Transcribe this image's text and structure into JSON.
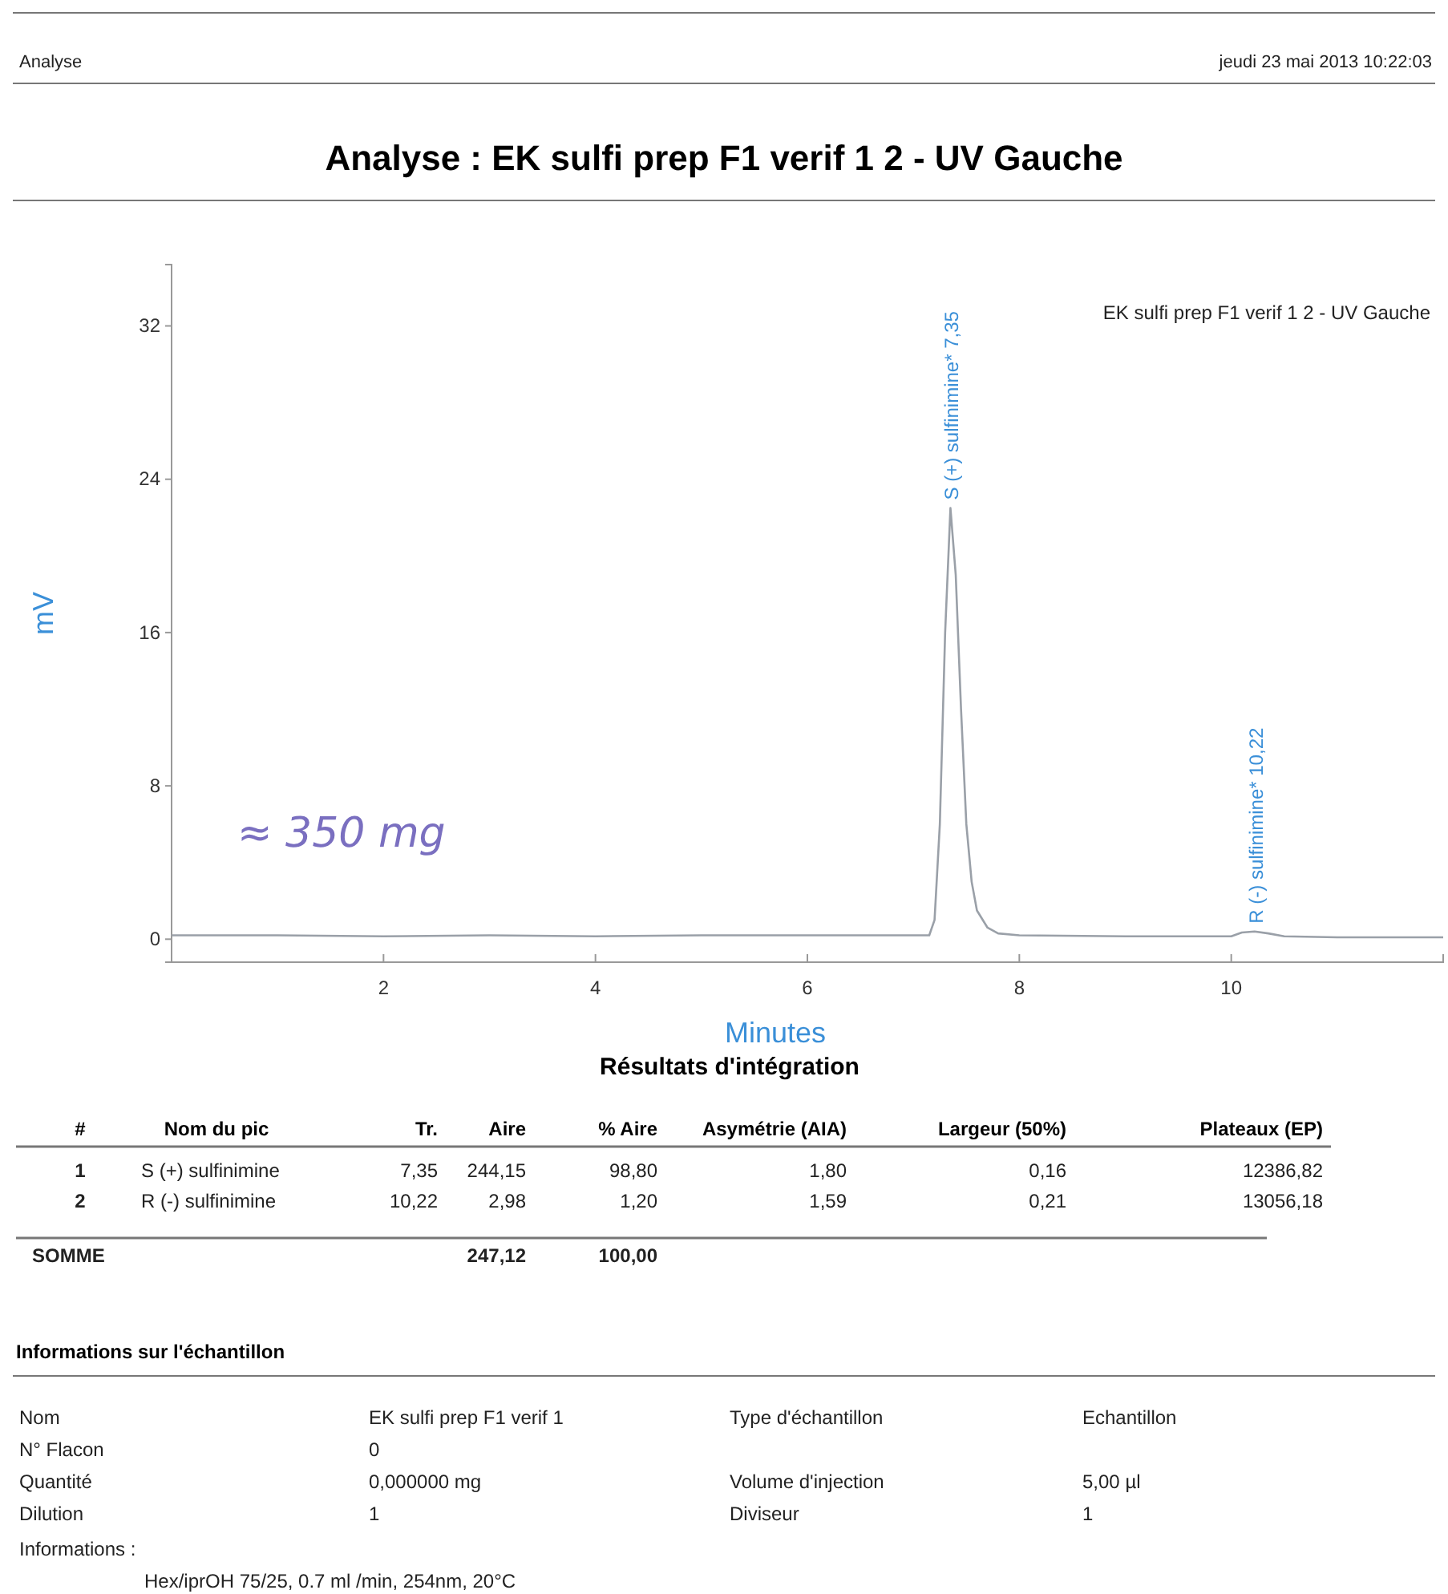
{
  "chart_data": [
    {
      "type": "line",
      "title": "Analyse : EK sulfi prep F1 verif 1 2 - UV Gauche",
      "xlabel": "Minutes",
      "ylabel": "mV",
      "x": [
        0,
        1,
        2,
        3,
        4,
        5,
        6,
        7,
        7.15,
        7.2,
        7.25,
        7.3,
        7.35,
        7.4,
        7.45,
        7.5,
        7.55,
        7.6,
        7.7,
        7.8,
        8,
        9,
        10,
        10.1,
        10.22,
        10.35,
        10.5,
        11,
        12
      ],
      "series": [
        {
          "name": "EK sulfi prep F1 verif 1 2 - UV Gauche",
          "color": "#9aa0a8",
          "values": [
            0.2,
            0.2,
            0.15,
            0.2,
            0.15,
            0.2,
            0.2,
            0.2,
            0.2,
            1,
            6,
            16,
            22.5,
            19,
            12,
            6,
            3,
            1.5,
            0.6,
            0.3,
            0.2,
            0.15,
            0.15,
            0.35,
            0.4,
            0.3,
            0.15,
            0.1,
            0.1
          ]
        }
      ],
      "xlim": [
        0,
        12
      ],
      "ylim": [
        -1.2,
        35.2
      ],
      "xticks": [
        2,
        4,
        6,
        8,
        10
      ],
      "yticks": [
        0,
        8,
        16,
        24,
        32
      ],
      "grid": false,
      "legend": "top right",
      "marker": "none",
      "line_style": "solid",
      "annotations": [
        {
          "text": "S (+) sulfinimine* 7,35",
          "x": 7.35,
          "y": 22.5
        },
        {
          "text": "R (-) sulfinimine* 10,22",
          "x": 10.22,
          "y": 0.4
        },
        "Analyse",
        "jeudi 23 mai 2013 10:22:03",
        "≈ 350 mg"
      ]
    },
    {
      "type": "other",
      "title": "Résultats d'intégration",
      "categories": [
        "#",
        "Nom du pic",
        "Tr.",
        "Aire",
        "% Aire",
        "Asymétrie (AIA)",
        "Largeur (50%)",
        "Plateaux (EP)"
      ],
      "cell_labels": [
        [
          "1",
          "S (+) sulfinimine",
          "7,35",
          "244,15",
          "98,80",
          "1,80",
          "0,16",
          "12386,82"
        ],
        [
          "2",
          "R (-) sulfinimine",
          "10,22",
          "2,98",
          "1,20",
          "1,59",
          "0,21",
          "13056,18"
        ],
        [
          "SOMME",
          null,
          null,
          "247,12",
          "100,00",
          null,
          null,
          null
        ]
      ]
    },
    {
      "type": "other",
      "title": "Informations sur l'échantillon",
      "cell_labels": [
        [
          "Nom",
          "EK sulfi prep F1 verif 1",
          "Type d'échantillon",
          "Echantillon"
        ],
        [
          "N° Flacon",
          "0",
          null,
          null
        ],
        [
          "Quantité",
          "0,000000 mg",
          "Volume d'injection",
          "5,00 µl"
        ],
        [
          "Dilution",
          "1",
          "Diviseur",
          "1"
        ]
      ],
      "annotations": [
        "Informations :",
        "Hex/iprOH 75/25, 0.7 ml /min, 254nm, 20°C"
      ]
    }
  ]
}
